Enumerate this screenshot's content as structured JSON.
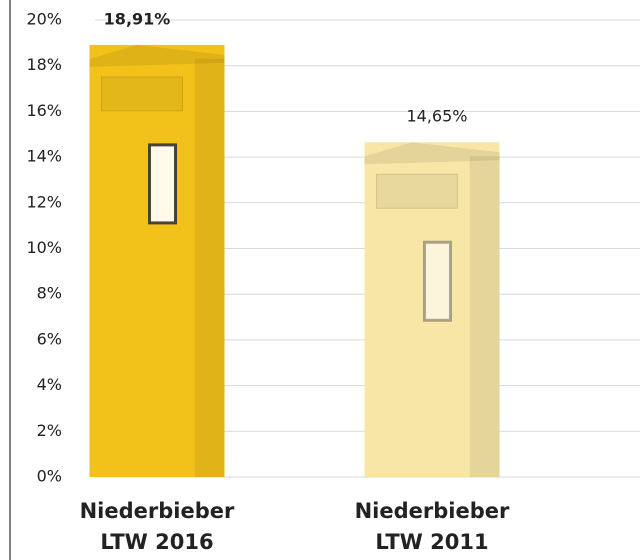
{
  "chart_data": {
    "type": "bar",
    "categories": [
      "Niederbieber LTW 2016",
      "Niederbieber LTW 2011"
    ],
    "values": [
      18.91,
      14.65
    ],
    "value_labels": [
      "18,91%",
      "14,65%"
    ],
    "value_label_bold": [
      true,
      false
    ],
    "colors": [
      "#f2c21b",
      "#f8e6a6"
    ],
    "ylim": [
      0,
      20
    ],
    "yticks": [
      {
        "value": 0,
        "label": "0%"
      },
      {
        "value": 2,
        "label": "2%"
      },
      {
        "value": 4,
        "label": "4%"
      },
      {
        "value": 6,
        "label": "6%"
      },
      {
        "value": 8,
        "label": "8%"
      },
      {
        "value": 10,
        "label": "10%"
      },
      {
        "value": 12,
        "label": "12%"
      },
      {
        "value": 14,
        "label": "14%"
      },
      {
        "value": 16,
        "label": "16%"
      },
      {
        "value": 18,
        "label": "18%"
      },
      {
        "value": 20,
        "label": "20%"
      }
    ],
    "grid": true
  }
}
